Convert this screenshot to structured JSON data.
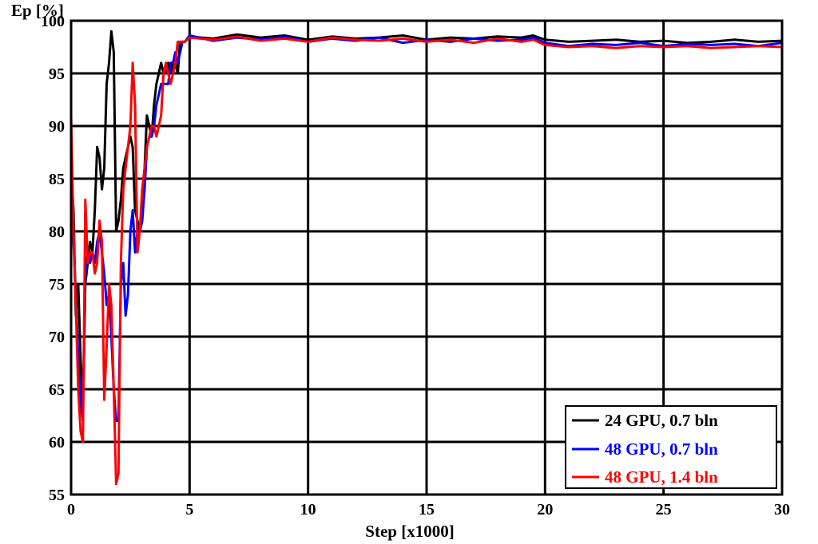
{
  "chart_data": {
    "type": "line",
    "title": "",
    "xlabel": "Step [x1000]",
    "ylabel": "Ep [%]",
    "xlim": [
      0,
      30
    ],
    "ylim": [
      55,
      100
    ],
    "xticks": [
      0,
      5,
      10,
      15,
      20,
      25,
      30
    ],
    "yticks": [
      55,
      60,
      65,
      70,
      75,
      80,
      85,
      90,
      95,
      100
    ],
    "xtick_labels": [
      "0",
      "5",
      "10",
      "15",
      "20",
      "25",
      "30"
    ],
    "ytick_labels": [
      "55",
      "60",
      "65",
      "70",
      "75",
      "80",
      "85",
      "90",
      "95",
      "100"
    ],
    "grid": true,
    "legend_position": "bottom-right",
    "series": [
      {
        "name": "24 GPU, 0.7 bln",
        "color": "#000000",
        "x": [
          0.0,
          0.1,
          0.2,
          0.3,
          0.4,
          0.5,
          0.6,
          0.7,
          0.8,
          0.9,
          1.0,
          1.1,
          1.2,
          1.3,
          1.4,
          1.5,
          1.6,
          1.7,
          1.8,
          1.9,
          2.0,
          2.1,
          2.2,
          2.3,
          2.4,
          2.5,
          2.6,
          2.7,
          2.8,
          2.9,
          3.0,
          3.1,
          3.2,
          3.3,
          3.4,
          3.5,
          3.6,
          3.7,
          3.8,
          3.9,
          4.0,
          4.1,
          4.2,
          4.3,
          4.4,
          4.5,
          4.6,
          4.7,
          4.8,
          5.0,
          6.0,
          7.0,
          8.0,
          9.0,
          10.0,
          11.0,
          12.0,
          13.0,
          14.0,
          15.0,
          16.0,
          17.0,
          18.0,
          19.0,
          19.5,
          20.0,
          21.0,
          22.0,
          23.0,
          24.0,
          25.0,
          26.0,
          27.0,
          28.0,
          29.0,
          30.0
        ],
        "values": [
          86,
          82,
          72,
          75,
          68,
          63,
          75,
          77,
          79,
          78,
          82,
          88,
          87,
          84,
          86,
          94,
          96,
          99,
          97,
          80,
          81,
          83,
          86,
          87,
          88,
          89,
          88,
          82,
          81,
          80,
          81,
          86,
          91,
          90,
          89,
          92,
          94,
          95,
          96,
          95,
          95,
          96,
          95,
          96,
          96,
          95,
          98,
          98,
          98,
          98.5,
          98.3,
          98.7,
          98.4,
          98.6,
          98.2,
          98.5,
          98.3,
          98.4,
          98.6,
          98.2,
          98.4,
          98.3,
          98.5,
          98.4,
          98.6,
          98.2,
          98.0,
          98.1,
          98.2,
          98.0,
          98.1,
          97.9,
          98.0,
          98.2,
          98.0,
          98.1
        ]
      },
      {
        "name": "48 GPU, 0.7 bln",
        "color": "#0000ff",
        "x": [
          0.0,
          0.1,
          0.2,
          0.3,
          0.4,
          0.5,
          0.6,
          0.7,
          0.8,
          0.9,
          1.0,
          1.1,
          1.2,
          1.3,
          1.4,
          1.5,
          1.6,
          1.7,
          1.8,
          1.9,
          2.0,
          2.1,
          2.2,
          2.3,
          2.4,
          2.5,
          2.6,
          2.7,
          2.8,
          2.9,
          3.0,
          3.1,
          3.2,
          3.3,
          3.4,
          3.5,
          3.6,
          3.7,
          3.8,
          3.9,
          4.0,
          4.1,
          4.2,
          4.3,
          4.4,
          4.5,
          4.6,
          4.7,
          4.8,
          5.0,
          6.0,
          7.0,
          8.0,
          9.0,
          10.0,
          11.0,
          12.0,
          13.0,
          14.0,
          15.0,
          16.0,
          17.0,
          18.0,
          19.0,
          19.5,
          20.0,
          21.0,
          22.0,
          23.0,
          24.0,
          25.0,
          26.0,
          27.0,
          28.0,
          29.0,
          30.0
        ],
        "values": [
          87,
          79,
          74,
          68,
          64,
          62,
          76,
          78,
          77,
          78,
          77,
          79,
          80,
          78,
          76,
          73,
          74,
          70,
          65,
          62,
          62,
          75,
          77,
          72,
          74,
          80,
          82,
          78,
          80,
          80,
          81,
          84,
          88,
          89,
          89,
          90,
          92,
          93,
          94,
          94,
          94,
          94,
          96,
          96,
          97,
          96,
          97,
          98,
          98,
          98.6,
          98.1,
          98.4,
          98.2,
          98.5,
          98.0,
          98.3,
          98.1,
          98.4,
          97.9,
          98.2,
          98.0,
          98.3,
          98.1,
          98.2,
          98.4,
          97.9,
          97.6,
          97.8,
          97.7,
          97.9,
          97.6,
          97.8,
          97.7,
          97.8,
          97.6,
          97.9
        ]
      },
      {
        "name": "48 GPU, 1.4 bln",
        "color": "#ff0000",
        "x": [
          0.0,
          0.1,
          0.2,
          0.3,
          0.4,
          0.5,
          0.6,
          0.7,
          0.8,
          0.9,
          1.0,
          1.1,
          1.2,
          1.3,
          1.4,
          1.5,
          1.6,
          1.7,
          1.8,
          1.9,
          2.0,
          2.1,
          2.2,
          2.3,
          2.4,
          2.5,
          2.6,
          2.7,
          2.8,
          2.9,
          3.0,
          3.1,
          3.2,
          3.3,
          3.4,
          3.5,
          3.6,
          3.7,
          3.8,
          3.9,
          4.0,
          4.1,
          4.2,
          4.3,
          4.4,
          4.5,
          4.6,
          4.7,
          4.8,
          5.0,
          6.0,
          7.0,
          8.0,
          9.0,
          10.0,
          11.0,
          12.0,
          13.0,
          14.0,
          15.0,
          16.0,
          17.0,
          18.0,
          19.0,
          19.5,
          20.0,
          21.0,
          22.0,
          23.0,
          24.0,
          25.0,
          26.0,
          27.0,
          28.0,
          29.0,
          30.0
        ],
        "values": [
          91,
          80,
          73,
          65,
          61,
          60,
          83,
          77,
          78,
          78,
          76,
          77,
          81,
          79,
          64,
          69,
          75,
          73,
          65,
          56,
          57,
          77,
          84,
          86,
          88,
          90,
          96,
          92,
          78,
          80,
          84,
          86,
          88,
          89,
          90,
          90,
          89,
          90,
          91,
          95,
          96,
          95,
          94,
          95,
          96,
          98,
          98,
          98,
          98,
          98.4,
          98.2,
          98.5,
          98.1,
          98.3,
          98.0,
          98.4,
          98.2,
          98.1,
          98.3,
          98.0,
          98.2,
          97.9,
          98.3,
          98.0,
          98.2,
          97.7,
          97.5,
          97.6,
          97.4,
          97.6,
          97.5,
          97.6,
          97.4,
          97.5,
          97.6,
          97.5
        ]
      }
    ]
  }
}
